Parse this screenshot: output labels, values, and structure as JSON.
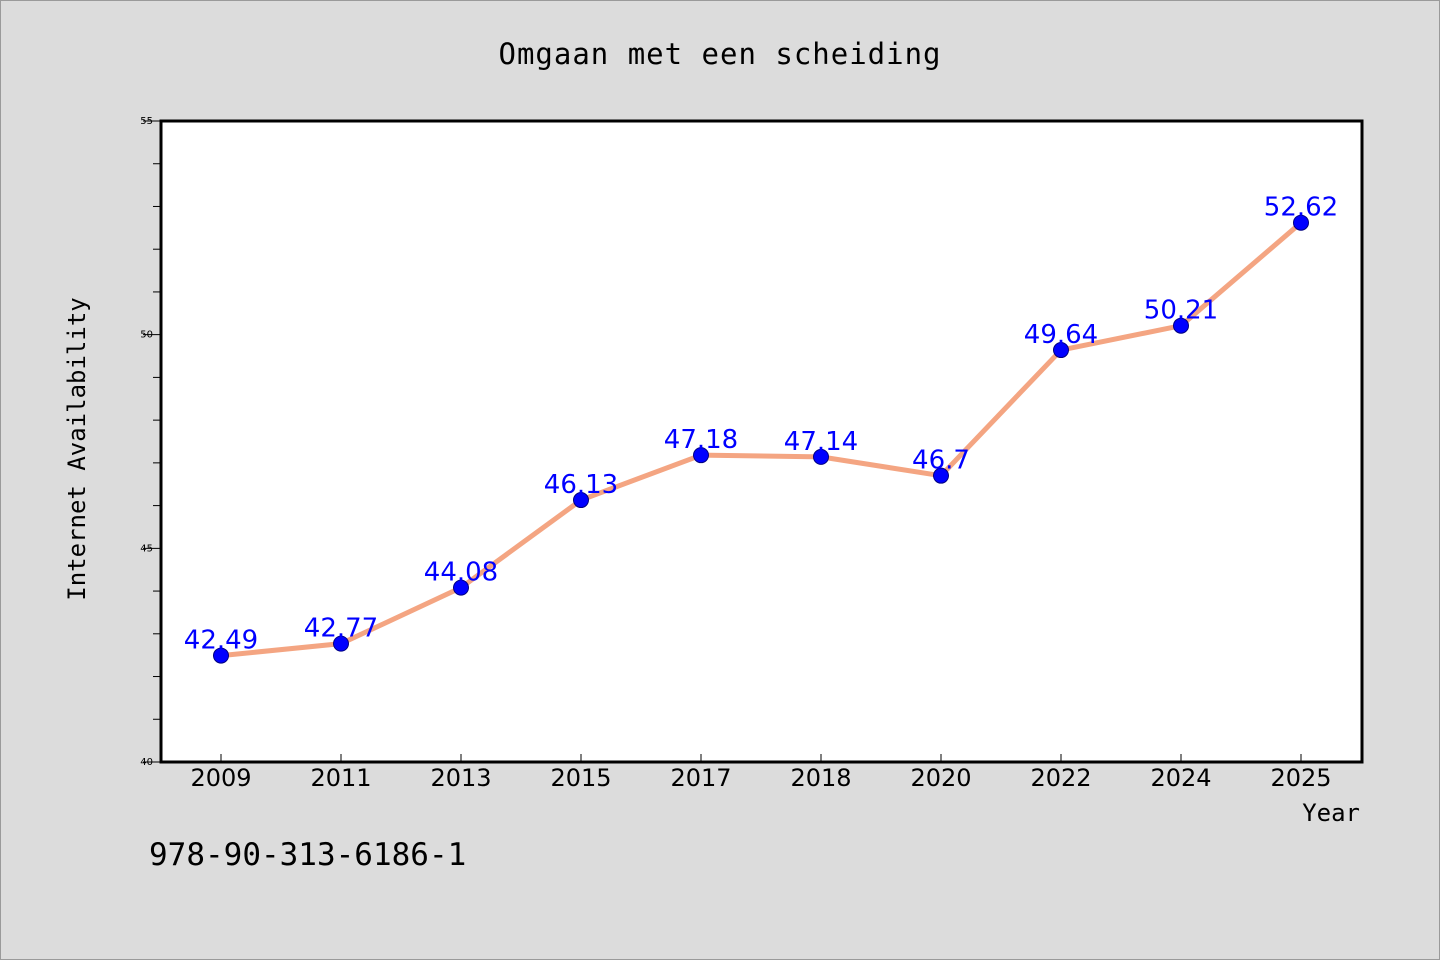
{
  "chart_data": {
    "type": "line",
    "title": "Omgaan met een scheiding",
    "xlabel": "Year",
    "ylabel": "Internet Availability",
    "categories": [
      "2009",
      "2011",
      "2013",
      "2015",
      "2017",
      "2018",
      "2020",
      "2022",
      "2024",
      "2025"
    ],
    "series": [
      {
        "values": [
          42.49,
          42.77,
          44.08,
          46.13,
          47.18,
          47.14,
          46.7,
          49.64,
          50.21,
          52.62
        ]
      }
    ],
    "data_labels": [
      "42.49",
      "42.77",
      "44.08",
      "46.13",
      "47.18",
      "47.14",
      "46.7",
      "49.64",
      "50.21",
      "52.62"
    ],
    "ylim": [
      40,
      55
    ],
    "yticks": [
      "40",
      "45",
      "50",
      "55"
    ],
    "grid": false,
    "legend": "none",
    "colors": {
      "line": "#f4a582",
      "marker": "#0000ff",
      "data_label": "#0000ff",
      "background": "#dcdcdc",
      "plot_background": "#ffffff"
    }
  },
  "footer": {
    "isbn": "978-90-313-6186-1"
  }
}
